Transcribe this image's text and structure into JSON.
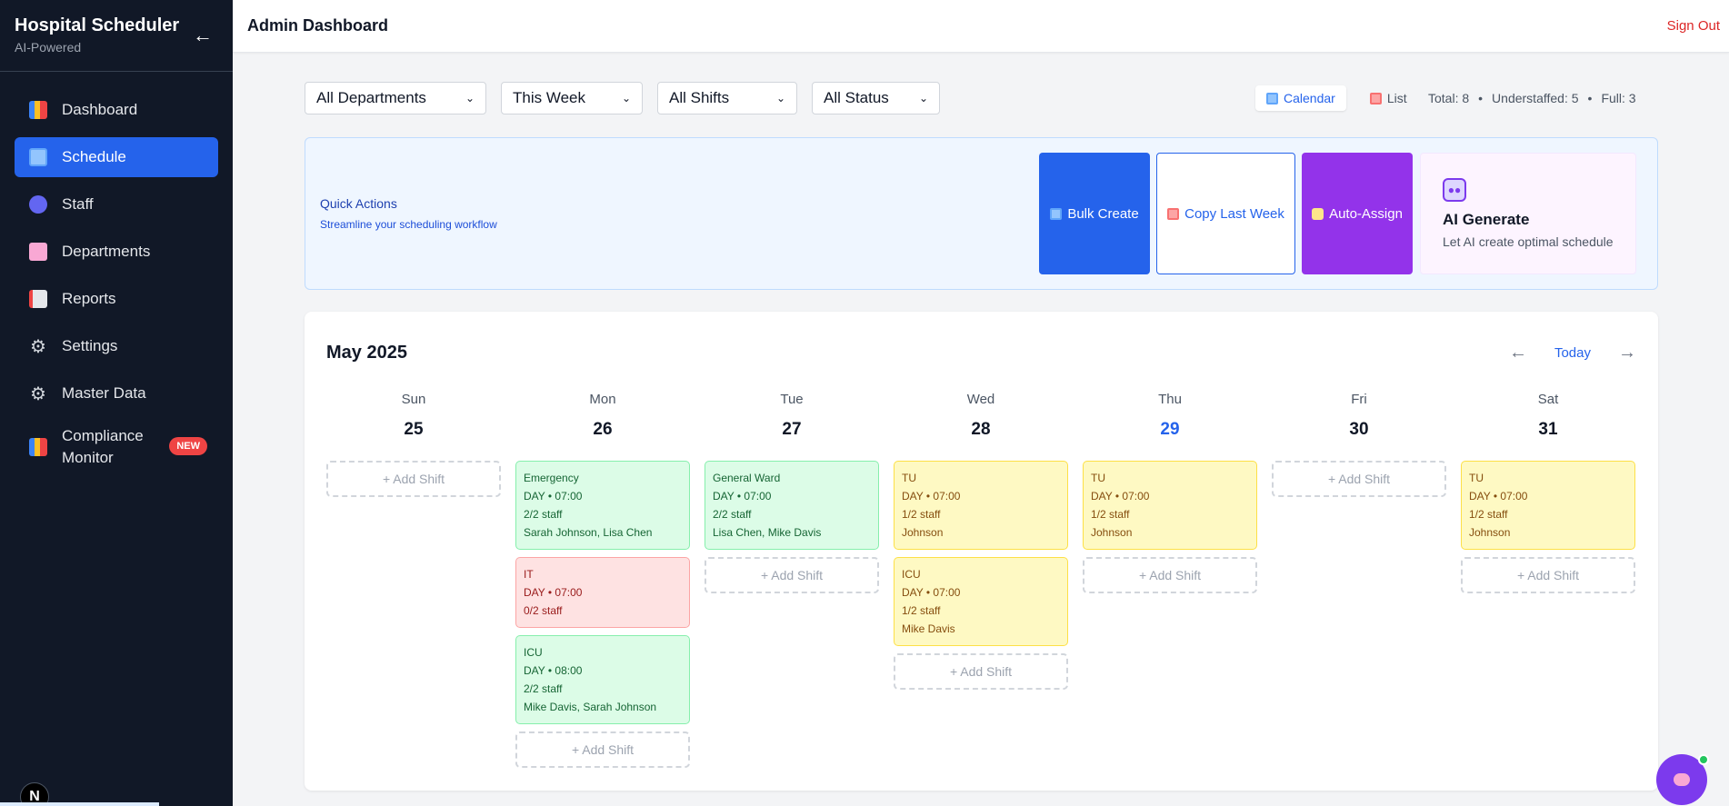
{
  "sidebar": {
    "title": "Hospital Scheduler",
    "subtitle": "AI-Powered",
    "collapse": "←",
    "items": [
      {
        "label": "Dashboard",
        "icon": "chart-icon"
      },
      {
        "label": "Schedule",
        "icon": "calendar-icon",
        "active": true
      },
      {
        "label": "Staff",
        "icon": "people-icon"
      },
      {
        "label": "Departments",
        "icon": "hospital-icon"
      },
      {
        "label": "Reports",
        "icon": "trend-chart-icon"
      },
      {
        "label": "Settings",
        "icon": "gear-icon"
      },
      {
        "label": "Master Data",
        "icon": "gear-icon"
      },
      {
        "label": "Compliance Monitor",
        "icon": "chart-icon",
        "badge": "NEW"
      }
    ],
    "footer_logo": "N"
  },
  "header": {
    "title": "Admin Dashboard",
    "sign_out": "Sign Out"
  },
  "filters": {
    "department": "All Departments",
    "period": "This Week",
    "shift": "All Shifts",
    "status": "All Status"
  },
  "view_toggle": {
    "calendar": "Calendar",
    "list": "List"
  },
  "stats": {
    "total": "Total: 8",
    "understaffed": "Understaffed: 5",
    "full": "Full: 3",
    "separator": "•"
  },
  "quick_actions": {
    "title": "Quick Actions",
    "subtitle": "Streamline your scheduling workflow",
    "bulk_create": "Bulk Create",
    "copy_last_week": "Copy Last Week",
    "auto_assign": "Auto-Assign",
    "ai_generate_title": "AI Generate",
    "ai_generate_sub": "Let AI create optimal schedule"
  },
  "calendar": {
    "title": "May 2025",
    "prev": "←",
    "today": "Today",
    "next": "→",
    "add_shift": "+ Add Shift",
    "days": [
      {
        "name": "Sun",
        "num": "25",
        "shifts": []
      },
      {
        "name": "Mon",
        "num": "26",
        "shifts": [
          {
            "dept": "Emergency",
            "time": "DAY • 07:00",
            "staff": "2/2 staff",
            "names": "Sarah Johnson, Lisa Chen",
            "status": "green"
          },
          {
            "dept": "IT",
            "time": "DAY • 07:00",
            "staff": "0/2 staff",
            "names": "",
            "status": "red"
          },
          {
            "dept": "ICU",
            "time": "DAY • 08:00",
            "staff": "2/2 staff",
            "names": "Mike Davis, Sarah Johnson",
            "status": "green"
          }
        ]
      },
      {
        "name": "Tue",
        "num": "27",
        "shifts": [
          {
            "dept": "General Ward",
            "time": "DAY • 07:00",
            "staff": "2/2 staff",
            "names": "Lisa Chen, Mike Davis",
            "status": "green"
          }
        ]
      },
      {
        "name": "Wed",
        "num": "28",
        "shifts": [
          {
            "dept": "TU",
            "time": "DAY • 07:00",
            "staff": "1/2 staff",
            "names": "Johnson",
            "status": "yellow"
          },
          {
            "dept": "ICU",
            "time": "DAY • 07:00",
            "staff": "1/2 staff",
            "names": "Mike Davis",
            "status": "yellow"
          }
        ]
      },
      {
        "name": "Thu",
        "num": "29",
        "today": true,
        "shifts": [
          {
            "dept": "TU",
            "time": "DAY • 07:00",
            "staff": "1/2 staff",
            "names": "Johnson",
            "status": "yellow"
          }
        ]
      },
      {
        "name": "Fri",
        "num": "30",
        "shifts": []
      },
      {
        "name": "Sat",
        "num": "31",
        "shifts": [
          {
            "dept": "TU",
            "time": "DAY • 07:00",
            "staff": "1/2 staff",
            "names": "Johnson",
            "status": "yellow"
          }
        ]
      }
    ]
  },
  "colors": {
    "accent": "#2563eb",
    "sidebar_bg": "#111827",
    "purple": "#9333ea",
    "danger": "#dc2626"
  }
}
